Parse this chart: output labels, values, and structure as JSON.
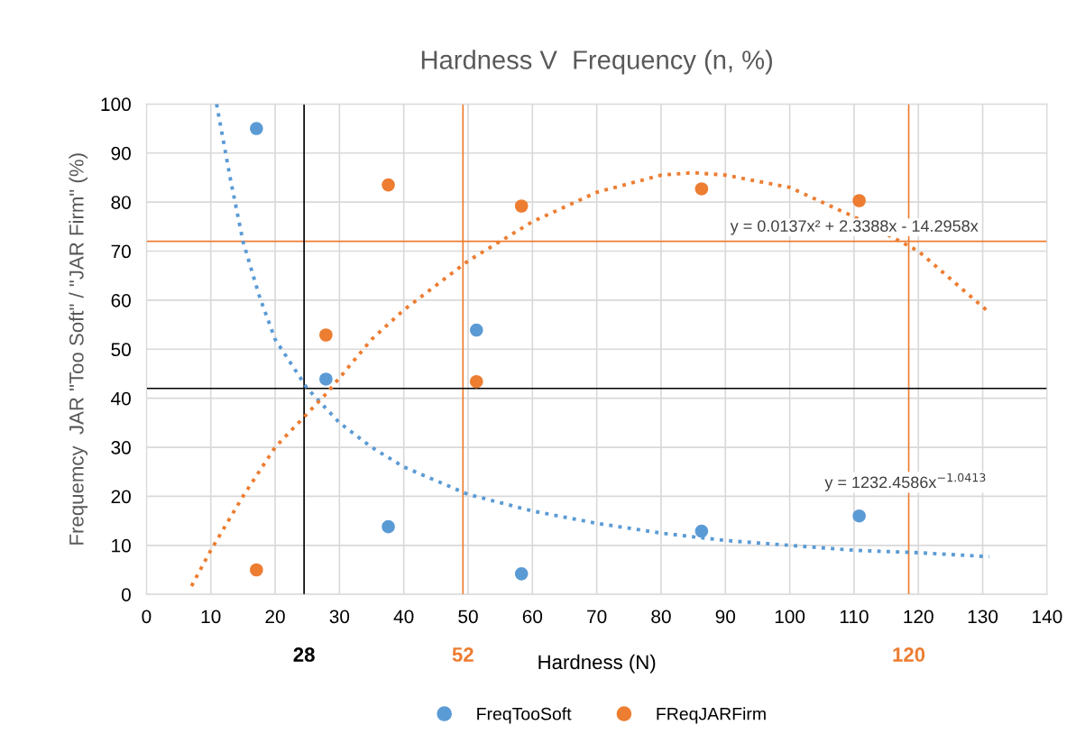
{
  "chart_data": {
    "type": "scatter",
    "title": "Hardness V  Frequency (n, %)",
    "xlabel": "Hardness (N)",
    "ylabel": "Frequemcy  JAR \"Too Soft\" / \"JAR Firm\" (%)",
    "xlim": [
      0,
      140
    ],
    "xticks": [
      0,
      10,
      20,
      30,
      40,
      50,
      60,
      70,
      80,
      90,
      100,
      110,
      120,
      130,
      140
    ],
    "ylim": [
      0,
      100
    ],
    "yticks": [
      0,
      10,
      20,
      30,
      40,
      50,
      60,
      70,
      80,
      90,
      100
    ],
    "grid": true,
    "legend": "bottom",
    "marker": "circle",
    "series": [
      {
        "name": "FreqTooSoft",
        "color": "#5b9bd5",
        "x": [
          17.1,
          27.9,
          37.6,
          51.3,
          58.3,
          86.3,
          110.8
        ],
        "values": [
          95,
          43.9,
          13.8,
          53.9,
          4.2,
          12.9,
          16.0
        ]
      },
      {
        "name": "FReqJARFirm",
        "color": "#ed7d31",
        "x": [
          17.1,
          27.9,
          37.6,
          51.3,
          58.3,
          86.3,
          110.8
        ],
        "values": [
          5.0,
          52.9,
          83.5,
          43.4,
          79.2,
          82.7,
          80.3
        ]
      },
      {
        "type": "line",
        "line_style": "dotted",
        "marker": "none",
        "color": "#5b9bd5",
        "x": [
          10.9,
          13,
          15,
          17.5,
          20,
          22.5,
          25,
          30,
          35,
          40,
          50,
          60,
          70,
          80,
          90,
          100,
          110,
          120,
          131
        ],
        "values": [
          100,
          85,
          72,
          61,
          52,
          47,
          42,
          35,
          30,
          26,
          20.4,
          17,
          14.5,
          12.5,
          11,
          10,
          9,
          8.5,
          7.7
        ]
      },
      {
        "type": "line",
        "line_style": "dotted",
        "marker": "none",
        "color": "#ed7d31",
        "x": [
          7,
          10,
          15,
          20,
          28,
          35,
          40,
          50,
          60,
          70,
          80,
          85,
          90,
          100,
          110,
          120,
          131
        ],
        "values": [
          1.7,
          9,
          20,
          30,
          41,
          52,
          58,
          68,
          76,
          82,
          85.5,
          86,
          85.5,
          83,
          77,
          70,
          57.5
        ]
      }
    ],
    "ref_lines": [
      {
        "axis": "y",
        "value": 72,
        "color": "#ed7d31",
        "line_style": "solid"
      },
      {
        "axis": "x",
        "value": 49.2,
        "color": "#ed7d31",
        "line_style": "solid"
      },
      {
        "axis": "x",
        "value": 118.5,
        "color": "#ed7d31",
        "line_style": "solid"
      },
      {
        "axis": "y",
        "value": 42,
        "color": "#000000",
        "line_style": "solid"
      },
      {
        "axis": "x",
        "value": 24.5,
        "color": "#000000",
        "line_style": "solid"
      }
    ],
    "annotations": [
      "y = 0.0137x² + 2.3388x - 14.2958x",
      "y = 1232.4586x$^{−1.0413}$",
      "28",
      "52",
      "120"
    ]
  }
}
